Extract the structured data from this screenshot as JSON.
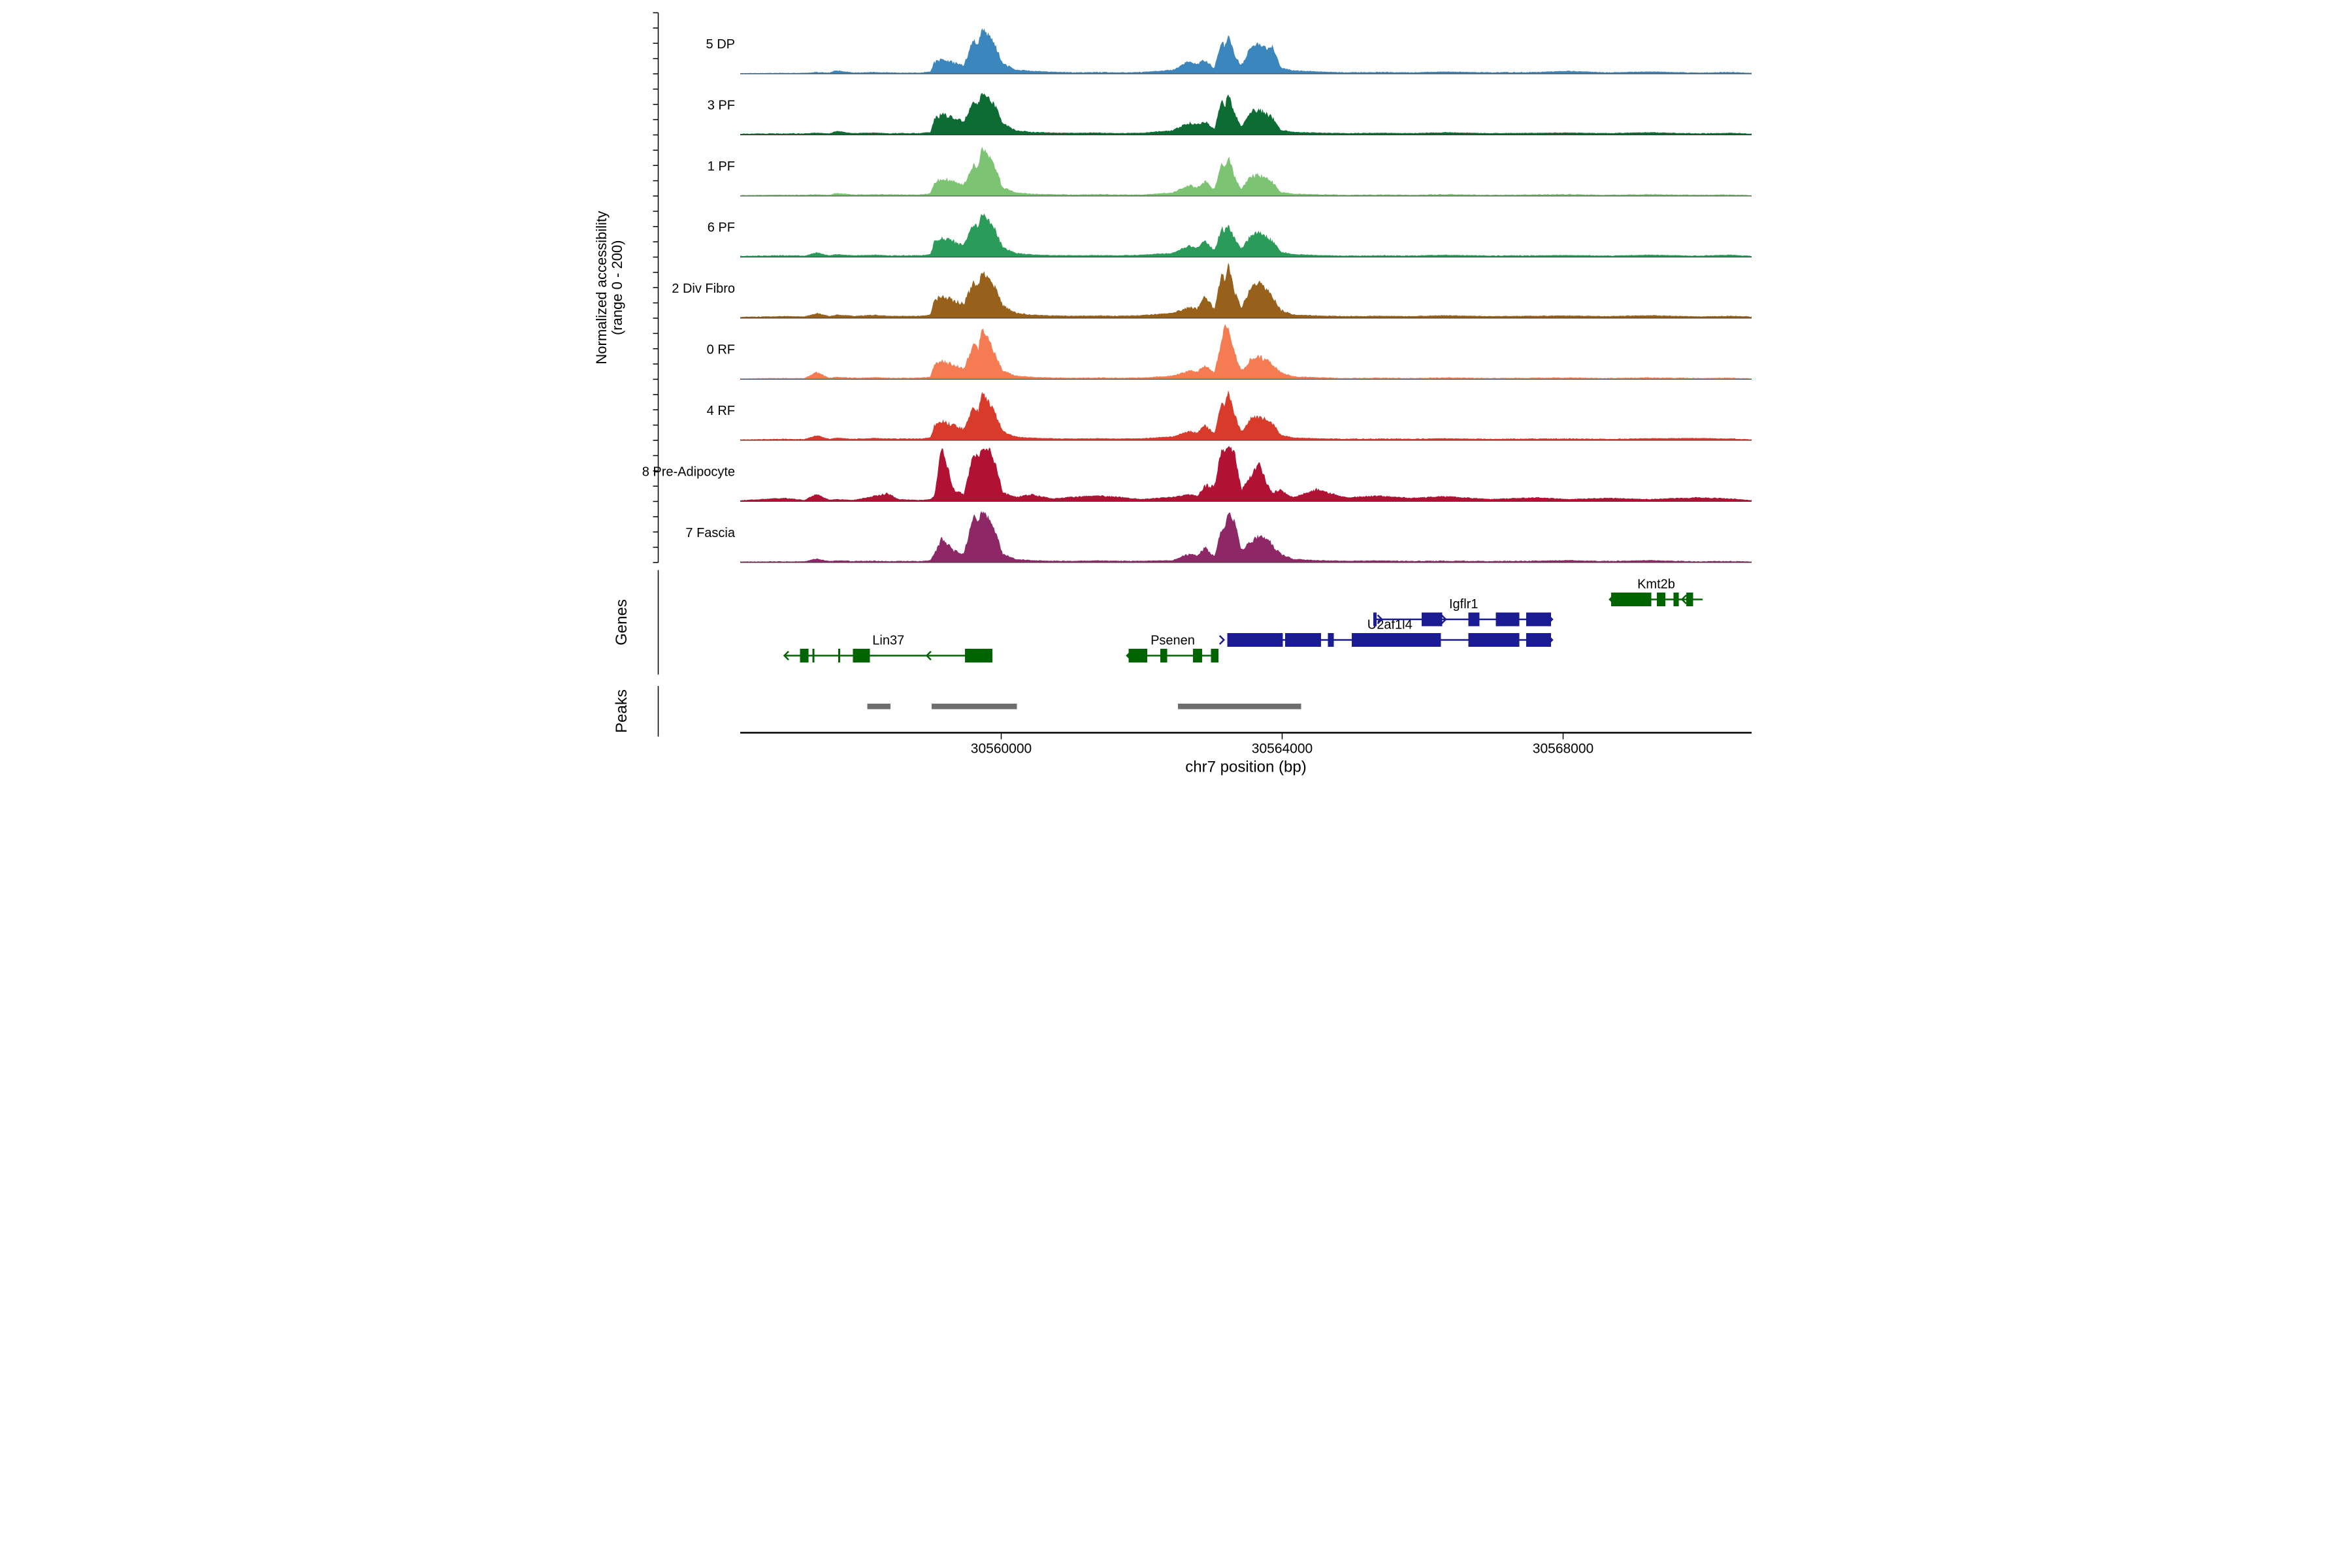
{
  "figure": {
    "background": "#ffffff"
  },
  "y_axis": {
    "label_line1": "Normalized accessibility",
    "label_line2": "(range 0 - 200)",
    "range": [
      0,
      200
    ]
  },
  "x_axis": {
    "title": "chr7 position (bp)",
    "tick_labels": [
      "30560000",
      "30564000",
      "30568000"
    ],
    "ticks_bp": [
      30560000,
      30564000,
      30568000
    ]
  },
  "sections": {
    "genes_label": "Genes",
    "peaks_label": "Peaks"
  },
  "colors": {
    "gene_green": "#006400",
    "gene_navy": "#1B1B94",
    "peak_bar": "#6E6E6E",
    "baseline": "#3a3a3a",
    "axis": "#000000",
    "tick_label": "#4D4D4D"
  },
  "chart_data": {
    "type": "area",
    "mode": "genome-coverage-tracks",
    "title": "",
    "xlabel": "chr7 position (bp)",
    "ylabel": "Normalized accessibility (range 0 - 200)",
    "region": {
      "chrom": "chr7",
      "start": 30556284,
      "end": 30570684
    },
    "ylim_per_track": [
      0,
      200
    ],
    "x": [
      30556300,
      30556900,
      30557200,
      30557372,
      30557550,
      30557651,
      30557900,
      30558209,
      30558380,
      30558535,
      30558850,
      30558990,
      30559047,
      30559150,
      30559330,
      30559465,
      30559605,
      30559675,
      30559721,
      30559837,
      30559930,
      30560023,
      30560209,
      30560440,
      30560721,
      30561047,
      30561372,
      30561651,
      30562000,
      30562442,
      30562674,
      30562790,
      30562907,
      30563033,
      30563140,
      30563186,
      30563233,
      30563326,
      30563419,
      30563558,
      30563674,
      30563790,
      30563860,
      30563977,
      30564163,
      30564488,
      30564907,
      30565372,
      30565837,
      30566302,
      30566953,
      30567605,
      30568070,
      30568628,
      30569233,
      30569930,
      30570395,
      30570684
    ],
    "tracks": [
      {
        "name": "5 DP",
        "color": "#3A86BD",
        "values": [
          2,
          3,
          3,
          6,
          4,
          12,
          4,
          6,
          5,
          4,
          4,
          8,
          40,
          52,
          38,
          30,
          120,
          100,
          160,
          128,
          90,
          36,
          14,
          10,
          7,
          5,
          6,
          5,
          6,
          14,
          44,
          34,
          48,
          20,
          110,
          95,
          134,
          60,
          30,
          92,
          104,
          88,
          96,
          22,
          12,
          8,
          5,
          6,
          5,
          8,
          5,
          6,
          10,
          5,
          8,
          4,
          6,
          3
        ]
      },
      {
        "name": "3 PF",
        "color": "#0D6B34",
        "values": [
          4,
          5,
          5,
          8,
          5,
          14,
          6,
          8,
          6,
          6,
          6,
          10,
          55,
          70,
          58,
          44,
          118,
          105,
          150,
          125,
          95,
          40,
          16,
          10,
          8,
          7,
          8,
          6,
          7,
          16,
          42,
          34,
          46,
          20,
          115,
          100,
          145,
          70,
          28,
          80,
          88,
          70,
          60,
          18,
          10,
          8,
          6,
          7,
          6,
          9,
          6,
          7,
          8,
          6,
          9,
          5,
          7,
          4
        ]
      },
      {
        "name": "1 PF",
        "color": "#7CC474",
        "values": [
          3,
          4,
          4,
          6,
          4,
          10,
          5,
          6,
          5,
          5,
          5,
          9,
          48,
          62,
          50,
          38,
          112,
          98,
          170,
          135,
          85,
          30,
          12,
          8,
          6,
          5,
          6,
          5,
          5,
          12,
          38,
          30,
          52,
          22,
          118,
          102,
          138,
          65,
          25,
          68,
          74,
          58,
          50,
          14,
          8,
          6,
          4,
          5,
          4,
          6,
          4,
          5,
          6,
          4,
          6,
          4,
          5,
          3
        ]
      },
      {
        "name": "6 PF",
        "color": "#2A9B59",
        "values": [
          4,
          6,
          5,
          16,
          6,
          10,
          6,
          8,
          6,
          6,
          6,
          10,
          52,
          66,
          54,
          40,
          115,
          100,
          152,
          122,
          88,
          34,
          14,
          9,
          7,
          6,
          7,
          6,
          8,
          14,
          40,
          32,
          56,
          24,
          100,
          90,
          112,
          60,
          28,
          76,
          86,
          68,
          58,
          18,
          10,
          7,
          5,
          6,
          5,
          8,
          5,
          6,
          7,
          5,
          8,
          5,
          8,
          4
        ]
      },
      {
        "name": "2 Div Fibro",
        "color": "#97611B",
        "values": [
          5,
          7,
          6,
          18,
          7,
          12,
          8,
          11,
          8,
          8,
          8,
          12,
          62,
          78,
          62,
          48,
          125,
          110,
          165,
          135,
          100,
          45,
          18,
          12,
          9,
          8,
          9,
          8,
          10,
          18,
          38,
          32,
          80,
          30,
          155,
          130,
          190,
          90,
          35,
          110,
          124,
          95,
          80,
          28,
          12,
          9,
          7,
          8,
          7,
          10,
          7,
          8,
          9,
          7,
          10,
          6,
          8,
          5
        ]
      },
      {
        "name": "0 RF",
        "color": "#F57C52",
        "values": [
          3,
          4,
          4,
          24,
          5,
          8,
          5,
          7,
          5,
          5,
          5,
          9,
          50,
          64,
          50,
          38,
          120,
          105,
          176,
          130,
          80,
          30,
          12,
          8,
          6,
          5,
          6,
          5,
          6,
          12,
          30,
          26,
          50,
          22,
          140,
          188,
          175,
          90,
          30,
          70,
          76,
          68,
          55,
          24,
          10,
          7,
          4,
          5,
          4,
          6,
          4,
          5,
          6,
          4,
          6,
          4,
          5,
          3
        ]
      },
      {
        "name": "4 RF",
        "color": "#D93B2B",
        "values": [
          3,
          5,
          4,
          18,
          5,
          9,
          5,
          8,
          6,
          6,
          6,
          10,
          52,
          66,
          52,
          40,
          118,
          104,
          168,
          128,
          82,
          32,
          13,
          9,
          7,
          6,
          7,
          6,
          7,
          13,
          32,
          27,
          52,
          23,
          135,
          120,
          170,
          85,
          30,
          76,
          84,
          72,
          60,
          20,
          10,
          7,
          5,
          6,
          5,
          7,
          5,
          6,
          6,
          5,
          7,
          8,
          6,
          3
        ]
      },
      {
        "name": "8 Pre-Adipocyte",
        "color": "#B11233",
        "values": [
          4,
          12,
          5,
          26,
          6,
          8,
          5,
          20,
          28,
          8,
          5,
          8,
          20,
          190,
          40,
          25,
          165,
          150,
          175,
          180,
          120,
          30,
          16,
          24,
          10,
          16,
          20,
          16,
          8,
          16,
          24,
          20,
          55,
          50,
          185,
          170,
          190,
          165,
          40,
          90,
          132,
          60,
          30,
          40,
          14,
          42,
          14,
          20,
          12,
          18,
          8,
          14,
          8,
          12,
          8,
          14,
          10,
          4
        ]
      },
      {
        "name": "7 Fascia",
        "color": "#8E2765",
        "values": [
          3,
          4,
          4,
          14,
          5,
          7,
          5,
          6,
          5,
          5,
          5,
          8,
          30,
          84,
          40,
          30,
          160,
          145,
          180,
          150,
          100,
          30,
          12,
          8,
          6,
          6,
          7,
          6,
          6,
          8,
          30,
          26,
          52,
          20,
          118,
          130,
          172,
          140,
          44,
          70,
          96,
          84,
          60,
          30,
          12,
          8,
          6,
          7,
          5,
          6,
          5,
          6,
          8,
          5,
          8,
          4,
          5,
          3
        ]
      }
    ],
    "genes": [
      {
        "name": "Lin37",
        "color": "#006400",
        "strand": "-",
        "row": 0,
        "line": [
          30556912,
          30559874
        ],
        "exons": [
          [
            30557135,
            30557256
          ],
          [
            30557312,
            30557340
          ],
          [
            30557679,
            30557707
          ],
          [
            30557888,
            30558130
          ],
          [
            30559484,
            30559874
          ]
        ],
        "chevrons": [
          30558939
        ]
      },
      {
        "name": "Psenen",
        "color": "#006400",
        "strand": "-",
        "row": 0,
        "line": [
          30561791,
          30563093
        ],
        "exons": [
          [
            30561814,
            30562079
          ],
          [
            30562265,
            30562363
          ],
          [
            30562730,
            30562860
          ],
          [
            30562986,
            30563093
          ]
        ],
        "chevrons": []
      },
      {
        "name": "U2af1l4",
        "color": "#1B1B94",
        "strand": "+",
        "row": 1,
        "line": [
          30563219,
          30567846
        ],
        "exons": [
          [
            30563219,
            30564009
          ],
          [
            30564042,
            30564553
          ],
          [
            30564651,
            30564735
          ],
          [
            30564991,
            30566260
          ],
          [
            30566651,
            30567377
          ],
          [
            30567474,
            30567828
          ]
        ],
        "chevrons": [
          30563170
        ]
      },
      {
        "name": "Igflr1",
        "color": "#1B1B94",
        "strand": "+",
        "row": 2,
        "line": [
          30565321,
          30567846
        ],
        "exons": [
          [
            30565298,
            30565344
          ],
          [
            30565986,
            30566279
          ],
          [
            30566651,
            30566809
          ],
          [
            30567042,
            30567377
          ],
          [
            30567474,
            30567828
          ]
        ],
        "chevrons": [
          30565420,
          30566330
        ]
      },
      {
        "name": "Kmt2b",
        "color": "#006400",
        "strand": "-",
        "row": 3,
        "line": [
          30568665,
          30569986
        ],
        "exons": [
          [
            30568684,
            30569256
          ],
          [
            30569335,
            30569456
          ],
          [
            30569572,
            30569647
          ],
          [
            30569754,
            30569851
          ]
        ],
        "chevrons": [
          30569693
        ]
      }
    ],
    "peaks": [
      [
        30558093,
        30558423
      ],
      [
        30559009,
        30560223
      ],
      [
        30562516,
        30564270
      ]
    ]
  }
}
